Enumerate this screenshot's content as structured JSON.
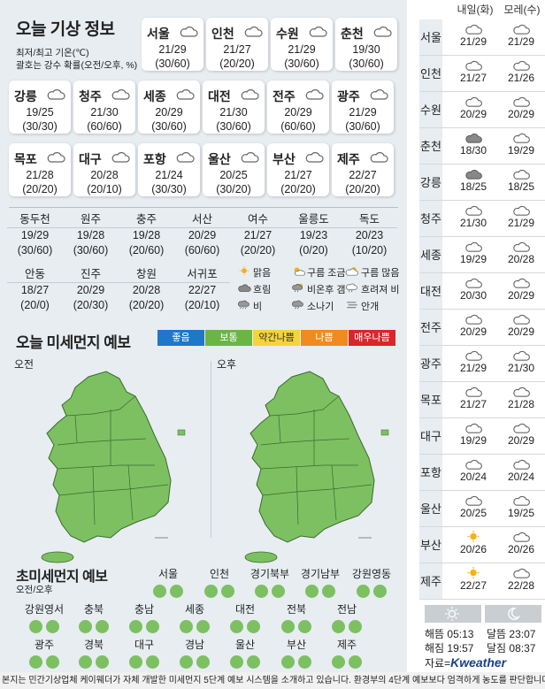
{
  "title": "오늘 기상 정보",
  "notes": [
    "최저/최고 기온(℃)",
    "괄호는 강수 확률(오전/오후, %)"
  ],
  "big_cards": [
    {
      "name": "서울",
      "temp": "21/29",
      "pop": "(30/60)",
      "icon": "cloud-icon"
    },
    {
      "name": "인천",
      "temp": "21/27",
      "pop": "(20/20)",
      "icon": "cloud-icon"
    },
    {
      "name": "수원",
      "temp": "21/29",
      "pop": "(30/60)",
      "icon": "cloud-icon"
    },
    {
      "name": "춘천",
      "temp": "19/30",
      "pop": "(30/60)",
      "icon": "cloud-icon"
    },
    {
      "name": "강릉",
      "temp": "19/25",
      "pop": "(30/30)",
      "icon": "cloud-icon"
    },
    {
      "name": "청주",
      "temp": "21/30",
      "pop": "(60/60)",
      "icon": "cloud-icon"
    },
    {
      "name": "세종",
      "temp": "20/29",
      "pop": "(30/60)",
      "icon": "cloud-icon"
    },
    {
      "name": "대전",
      "temp": "21/30",
      "pop": "(30/60)",
      "icon": "cloud-icon"
    },
    {
      "name": "전주",
      "temp": "20/29",
      "pop": "(60/60)",
      "icon": "cloud-icon"
    },
    {
      "name": "광주",
      "temp": "21/29",
      "pop": "(30/60)",
      "icon": "cloud-icon"
    },
    {
      "name": "목포",
      "temp": "21/28",
      "pop": "(20/20)",
      "icon": "cloud-icon"
    },
    {
      "name": "대구",
      "temp": "20/28",
      "pop": "(20/10)",
      "icon": "cloud-icon"
    },
    {
      "name": "포항",
      "temp": "21/24",
      "pop": "(30/30)",
      "icon": "cloud-icon"
    },
    {
      "name": "울산",
      "temp": "20/25",
      "pop": "(30/20)",
      "icon": "cloud-icon"
    },
    {
      "name": "부산",
      "temp": "21/27",
      "pop": "(20/20)",
      "icon": "cloud-icon"
    },
    {
      "name": "제주",
      "temp": "22/27",
      "pop": "(20/20)",
      "icon": "cloud-icon"
    }
  ],
  "small_row1": [
    {
      "name": "동두천",
      "temp": "19/29",
      "pop": "(30/60)"
    },
    {
      "name": "원주",
      "temp": "19/28",
      "pop": "(30/60)"
    },
    {
      "name": "충주",
      "temp": "19/28",
      "pop": "(20/60)"
    },
    {
      "name": "서산",
      "temp": "20/29",
      "pop": "(60/60)"
    },
    {
      "name": "여수",
      "temp": "21/27",
      "pop": "(20/20)"
    },
    {
      "name": "울릉도",
      "temp": "19/23",
      "pop": "(0/20)"
    },
    {
      "name": "독도",
      "temp": "20/23",
      "pop": "(10/20)"
    }
  ],
  "small_row2": [
    {
      "name": "안동",
      "temp": "18/27",
      "pop": "(20/0)"
    },
    {
      "name": "진주",
      "temp": "20/29",
      "pop": "(20/30)"
    },
    {
      "name": "창원",
      "temp": "20/28",
      "pop": "(20/20)"
    },
    {
      "name": "서귀포",
      "temp": "22/27",
      "pop": "(20/10)"
    }
  ],
  "legend": [
    {
      "label": "맑음",
      "icon": "sun-icon"
    },
    {
      "label": "구름 조금",
      "icon": "sun-cloud-icon"
    },
    {
      "label": "구름 많음",
      "icon": "cloud-sun-icon"
    },
    {
      "label": "흐림",
      "icon": "dark-cloud-icon"
    },
    {
      "label": "비온후 갬",
      "icon": "rain-sun-icon"
    },
    {
      "label": "흐려져 비",
      "icon": "cloud-rain-icon"
    },
    {
      "label": "비",
      "icon": "rain-icon"
    },
    {
      "label": "소나기",
      "icon": "shower-icon"
    },
    {
      "label": "안개",
      "icon": "fog-icon"
    }
  ],
  "dust_title": "오늘 미세먼지 예보",
  "dust_levels": [
    {
      "label": "좋음",
      "color": "#1f77c9"
    },
    {
      "label": "보통",
      "color": "#6bb545"
    },
    {
      "label": "약간나쁨",
      "color": "#f4d43a"
    },
    {
      "label": "나쁨",
      "color": "#ef8b1f"
    },
    {
      "label": "매우나쁨",
      "color": "#d9262a"
    }
  ],
  "map_labels": [
    "오전",
    "오후"
  ],
  "pm25_title": "초미세먼지 예보",
  "pm25_sub": "오전/오후",
  "pm25_regions": [
    "서울",
    "인천",
    "경기북부",
    "경기남부",
    "강원영동",
    "강원영서",
    "충북",
    "충남",
    "세종",
    "대전",
    "전북",
    "전남",
    "광주",
    "경북",
    "대구",
    "경남",
    "울산",
    "부산",
    "제주"
  ],
  "forecast_headers": [
    "내일(화)",
    "모레(수)"
  ],
  "forecast": [
    {
      "city": "서울",
      "d1": "21/29",
      "d2": "21/29",
      "i1": "cloud-icon",
      "i2": "cloud-icon"
    },
    {
      "city": "인천",
      "d1": "21/27",
      "d2": "21/26",
      "i1": "cloud-icon",
      "i2": "cloud-icon"
    },
    {
      "city": "수원",
      "d1": "20/29",
      "d2": "20/29",
      "i1": "cloud-icon",
      "i2": "cloud-icon"
    },
    {
      "city": "춘천",
      "d1": "18/30",
      "d2": "19/29",
      "i1": "dark-cloud-icon",
      "i2": "cloud-icon"
    },
    {
      "city": "강릉",
      "d1": "18/25",
      "d2": "18/25",
      "i1": "dark-cloud-icon",
      "i2": "cloud-icon"
    },
    {
      "city": "청주",
      "d1": "21/30",
      "d2": "21/29",
      "i1": "cloud-icon",
      "i2": "cloud-icon"
    },
    {
      "city": "세종",
      "d1": "19/29",
      "d2": "20/28",
      "i1": "cloud-icon",
      "i2": "cloud-icon"
    },
    {
      "city": "대전",
      "d1": "20/30",
      "d2": "20/29",
      "i1": "cloud-icon",
      "i2": "cloud-icon"
    },
    {
      "city": "전주",
      "d1": "20/29",
      "d2": "20/29",
      "i1": "cloud-icon",
      "i2": "cloud-icon"
    },
    {
      "city": "광주",
      "d1": "21/29",
      "d2": "21/30",
      "i1": "cloud-icon",
      "i2": "cloud-icon"
    },
    {
      "city": "목포",
      "d1": "21/27",
      "d2": "21/28",
      "i1": "cloud-icon",
      "i2": "cloud-icon"
    },
    {
      "city": "대구",
      "d1": "19/29",
      "d2": "20/29",
      "i1": "cloud-icon",
      "i2": "cloud-icon"
    },
    {
      "city": "포항",
      "d1": "20/24",
      "d2": "20/24",
      "i1": "cloud-icon",
      "i2": "cloud-icon"
    },
    {
      "city": "울산",
      "d1": "20/25",
      "d2": "19/25",
      "i1": "cloud-icon",
      "i2": "cloud-icon"
    },
    {
      "city": "부산",
      "d1": "20/26",
      "d2": "20/26",
      "i1": "sun-icon",
      "i2": "cloud-icon"
    },
    {
      "city": "제주",
      "d1": "22/27",
      "d2": "22/28",
      "i1": "sun-icon",
      "i2": "cloud-icon"
    }
  ],
  "sun": {
    "rise": "해뜸 05:13",
    "set": "해짐 19:57",
    "moonrise": "달뜸 23:07",
    "moonset": "달짐 08:37"
  },
  "source": "자료=",
  "brand": "Kweather",
  "footer": "본지는 민간기상업체 케이웨더가 자체 개발한 미세먼지 5단계 예보 시스템을 소개하고 있습니다. 환경부의 4단계 예보보다 엄격하게 농도를 판단합니다."
}
